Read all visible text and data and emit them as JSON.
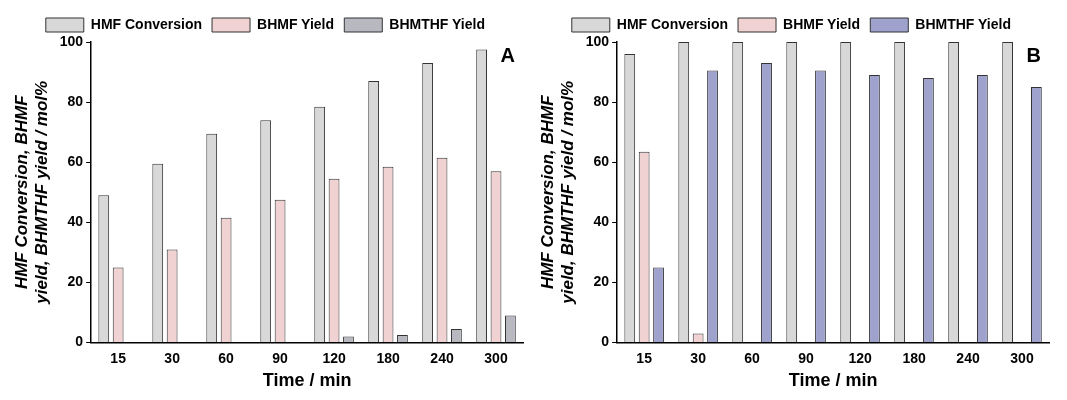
{
  "chart_data": [
    {
      "type": "bar",
      "categories": [
        "15",
        "30",
        "60",
        "90",
        "120",
        "180",
        "240",
        "300"
      ],
      "xlabel": "Time / min",
      "ylabel": "HMF Conversion, BHMF yield, BHMTHF yield / mol%",
      "ylim": [
        0,
        100
      ],
      "yticks": [
        0,
        20,
        40,
        60,
        80,
        100
      ],
      "grid": false,
      "legend": "top",
      "annotations": [
        "A"
      ],
      "series": [
        {
          "name": "HMF Conversion",
          "color": "#d8d8d8",
          "values": [
            49,
            59.5,
            69.5,
            74,
            78.5,
            87,
            93,
            97.5
          ]
        },
        {
          "name": "BHMF Yield",
          "color": "#f0d2d2",
          "values": [
            25,
            31,
            41.5,
            47.5,
            54.5,
            58.5,
            61.5,
            57
          ]
        },
        {
          "name": "BHMTHF Yield",
          "color": "#b8b8c0",
          "values": [
            null,
            null,
            null,
            null,
            2,
            2.5,
            4.5,
            9
          ]
        }
      ]
    },
    {
      "type": "bar",
      "categories": [
        "15",
        "30",
        "60",
        "90",
        "120",
        "180",
        "240",
        "300"
      ],
      "xlabel": "Time / min",
      "ylabel": "HMF Conversion, BHMF yield, BHMTHF yield / mol%",
      "ylim": [
        0,
        100
      ],
      "yticks": [
        0,
        20,
        40,
        60,
        80,
        100
      ],
      "grid": false,
      "legend": "top",
      "annotations": [
        "B"
      ],
      "series": [
        {
          "name": "HMF Conversion",
          "color": "#d8d8d8",
          "values": [
            96,
            100,
            100,
            100,
            100,
            100,
            100,
            100
          ]
        },
        {
          "name": "BHMF Yield",
          "color": "#f0d2d2",
          "values": [
            63.5,
            3,
            null,
            null,
            null,
            null,
            null,
            null
          ]
        },
        {
          "name": "BHMTHF Yield",
          "color": "#9ea2cc",
          "values": [
            25,
            90.5,
            93,
            90.5,
            89,
            88,
            89,
            85
          ]
        }
      ]
    }
  ]
}
